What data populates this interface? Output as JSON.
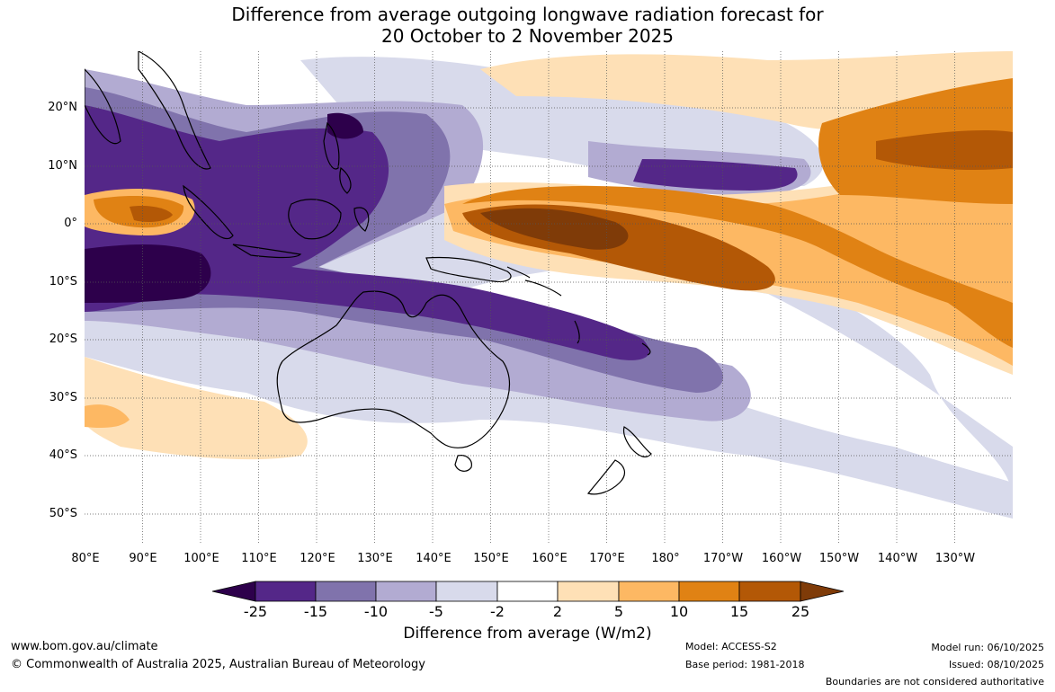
{
  "title": {
    "line1": "Difference from average outgoing longwave radiation forecast for",
    "line2": "20 October to 2 November 2025"
  },
  "axes": {
    "lat_labels": [
      "20°N",
      "10°N",
      "0°",
      "10°S",
      "20°S",
      "30°S",
      "40°S",
      "50°S"
    ],
    "lon_labels": [
      "80°E",
      "90°E",
      "100°E",
      "110°E",
      "120°E",
      "130°E",
      "140°E",
      "150°E",
      "160°E",
      "170°E",
      "180°",
      "170°W",
      "160°W",
      "150°W",
      "140°W",
      "130°W"
    ]
  },
  "colorbar": {
    "ticks": [
      "-25",
      "-15",
      "-10",
      "-5",
      "-2",
      "2",
      "5",
      "10",
      "15",
      "25"
    ],
    "colors": [
      "#2d004b",
      "#542788",
      "#8073ac",
      "#b2abd2",
      "#d8daeb",
      "#ffffff",
      "#fee0b6",
      "#fdb863",
      "#e08214",
      "#b35806",
      "#7f3b08"
    ],
    "label": "Difference from average (W/m2)"
  },
  "footer": {
    "url": "www.bom.gov.au/climate",
    "copyright": "© Commonwealth of Australia 2025, Australian Bureau of Meteorology",
    "model": "Model: ACCESS-S2",
    "base_period": "Base period: 1981-2018",
    "model_run": "Model run: 06/10/2025",
    "issued": "Issued: 08/10/2025",
    "disclaimer": "Boundaries are not considered authoritative"
  }
}
